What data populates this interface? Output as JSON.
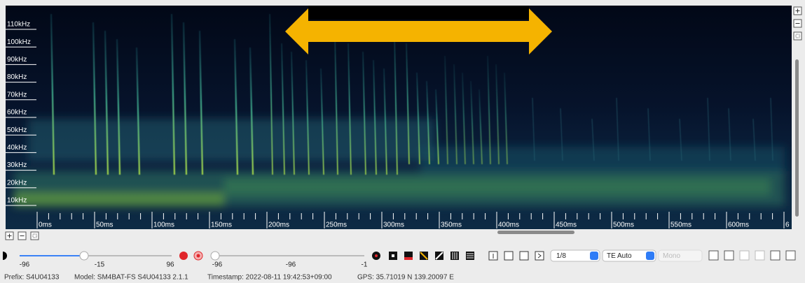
{
  "spectrogram": {
    "frequency_labels": [
      "110kHz",
      "100kHz",
      "90kHz",
      "80kHz",
      "70kHz",
      "60kHz",
      "50kHz",
      "40kHz",
      "30kHz",
      "20kHz",
      "10kHz"
    ],
    "time_labels": [
      "0ms",
      "50ms",
      "100ms",
      "150ms",
      "200ms",
      "250ms",
      "300ms",
      "350ms",
      "400ms",
      "450ms",
      "500ms",
      "550ms",
      "600ms",
      "6"
    ]
  },
  "controls": {
    "slider_1_labels": [
      -96,
      -15,
      96
    ],
    "slider_2_labels": [
      -96,
      -96,
      -1
    ],
    "decimation": "1/8",
    "te_mode": "TE Auto",
    "channel": "Mono"
  },
  "status": {
    "prefix": "Prefix: S4U04133",
    "model": "Model: SM4BAT-FS S4U04133 2.1.1",
    "timestamp": "Timestamp: 2022-08-11 19:42:53+09:00",
    "gps": "GPS: 35.71019 N 139.20097 E"
  }
}
